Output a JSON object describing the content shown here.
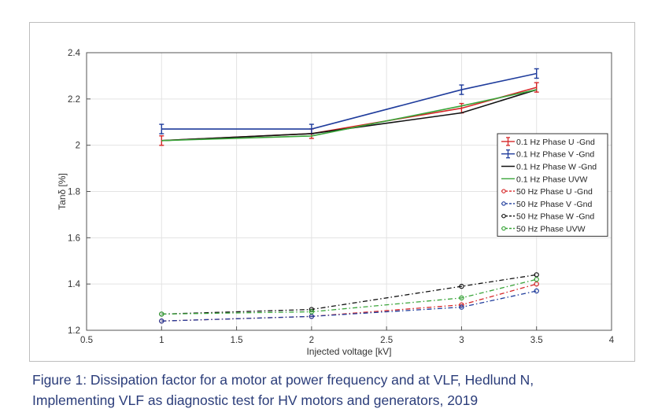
{
  "caption": {
    "line1": "Figure 1: Dissipation factor for a motor at power frequency and at VLF, Hedlund N,",
    "line2": "Implementing VLF as diagnostic test for HV motors and generators, 2019"
  },
  "chart_data": {
    "type": "line",
    "xlabel": "Injected voltage [kV]",
    "ylabel": "Tanδ [%]",
    "xlim": [
      0.5,
      4
    ],
    "ylim": [
      1.2,
      2.4
    ],
    "xticks": [
      "0.5",
      "1",
      "1.5",
      "2",
      "2.5",
      "3",
      "3.5",
      "4"
    ],
    "yticks": [
      "1.2",
      "1.4",
      "1.6",
      "1.8",
      "2",
      "2.2",
      "2.4"
    ],
    "grid": true,
    "legend_position": "right",
    "series": [
      {
        "name": "0.1 Hz Phase U -Gnd",
        "color": "#d62728",
        "style": "solid",
        "marker": "errorbar",
        "x": [
          1,
          2,
          3,
          3.5
        ],
        "y": [
          2.02,
          2.05,
          2.16,
          2.25
        ]
      },
      {
        "name": "0.1 Hz Phase V -Gnd",
        "color": "#1f3c9c",
        "style": "solid",
        "marker": "errorbar",
        "x": [
          1,
          2,
          3,
          3.5
        ],
        "y": [
          2.07,
          2.07,
          2.24,
          2.31
        ]
      },
      {
        "name": "0.1 Hz Phase W -Gnd",
        "color": "#111111",
        "style": "solid",
        "marker": "none",
        "x": [
          1,
          2,
          3,
          3.5
        ],
        "y": [
          2.02,
          2.05,
          2.14,
          2.24
        ]
      },
      {
        "name": "0.1 Hz Phase UVW",
        "color": "#3aa53a",
        "style": "solid",
        "marker": "none",
        "x": [
          1,
          2,
          3,
          3.5
        ],
        "y": [
          2.02,
          2.04,
          2.17,
          2.24
        ]
      },
      {
        "name": "50 Hz Phase U -Gnd",
        "color": "#d62728",
        "style": "dashdot",
        "marker": "circle",
        "x": [
          1,
          2,
          3,
          3.5
        ],
        "y": [
          1.24,
          1.26,
          1.31,
          1.4
        ]
      },
      {
        "name": "50 Hz Phase V -Gnd",
        "color": "#1f3c9c",
        "style": "dashdot",
        "marker": "circle",
        "x": [
          1,
          2,
          3,
          3.5
        ],
        "y": [
          1.24,
          1.26,
          1.3,
          1.37
        ]
      },
      {
        "name": "50 Hz Phase W -Gnd",
        "color": "#111111",
        "style": "dashdot",
        "marker": "circle",
        "x": [
          1,
          2,
          3,
          3.5
        ],
        "y": [
          1.27,
          1.29,
          1.39,
          1.44
        ]
      },
      {
        "name": "50 Hz Phase UVW",
        "color": "#3aa53a",
        "style": "dashdot",
        "marker": "circle",
        "x": [
          1,
          2,
          3,
          3.5
        ],
        "y": [
          1.27,
          1.28,
          1.34,
          1.42
        ]
      }
    ]
  }
}
